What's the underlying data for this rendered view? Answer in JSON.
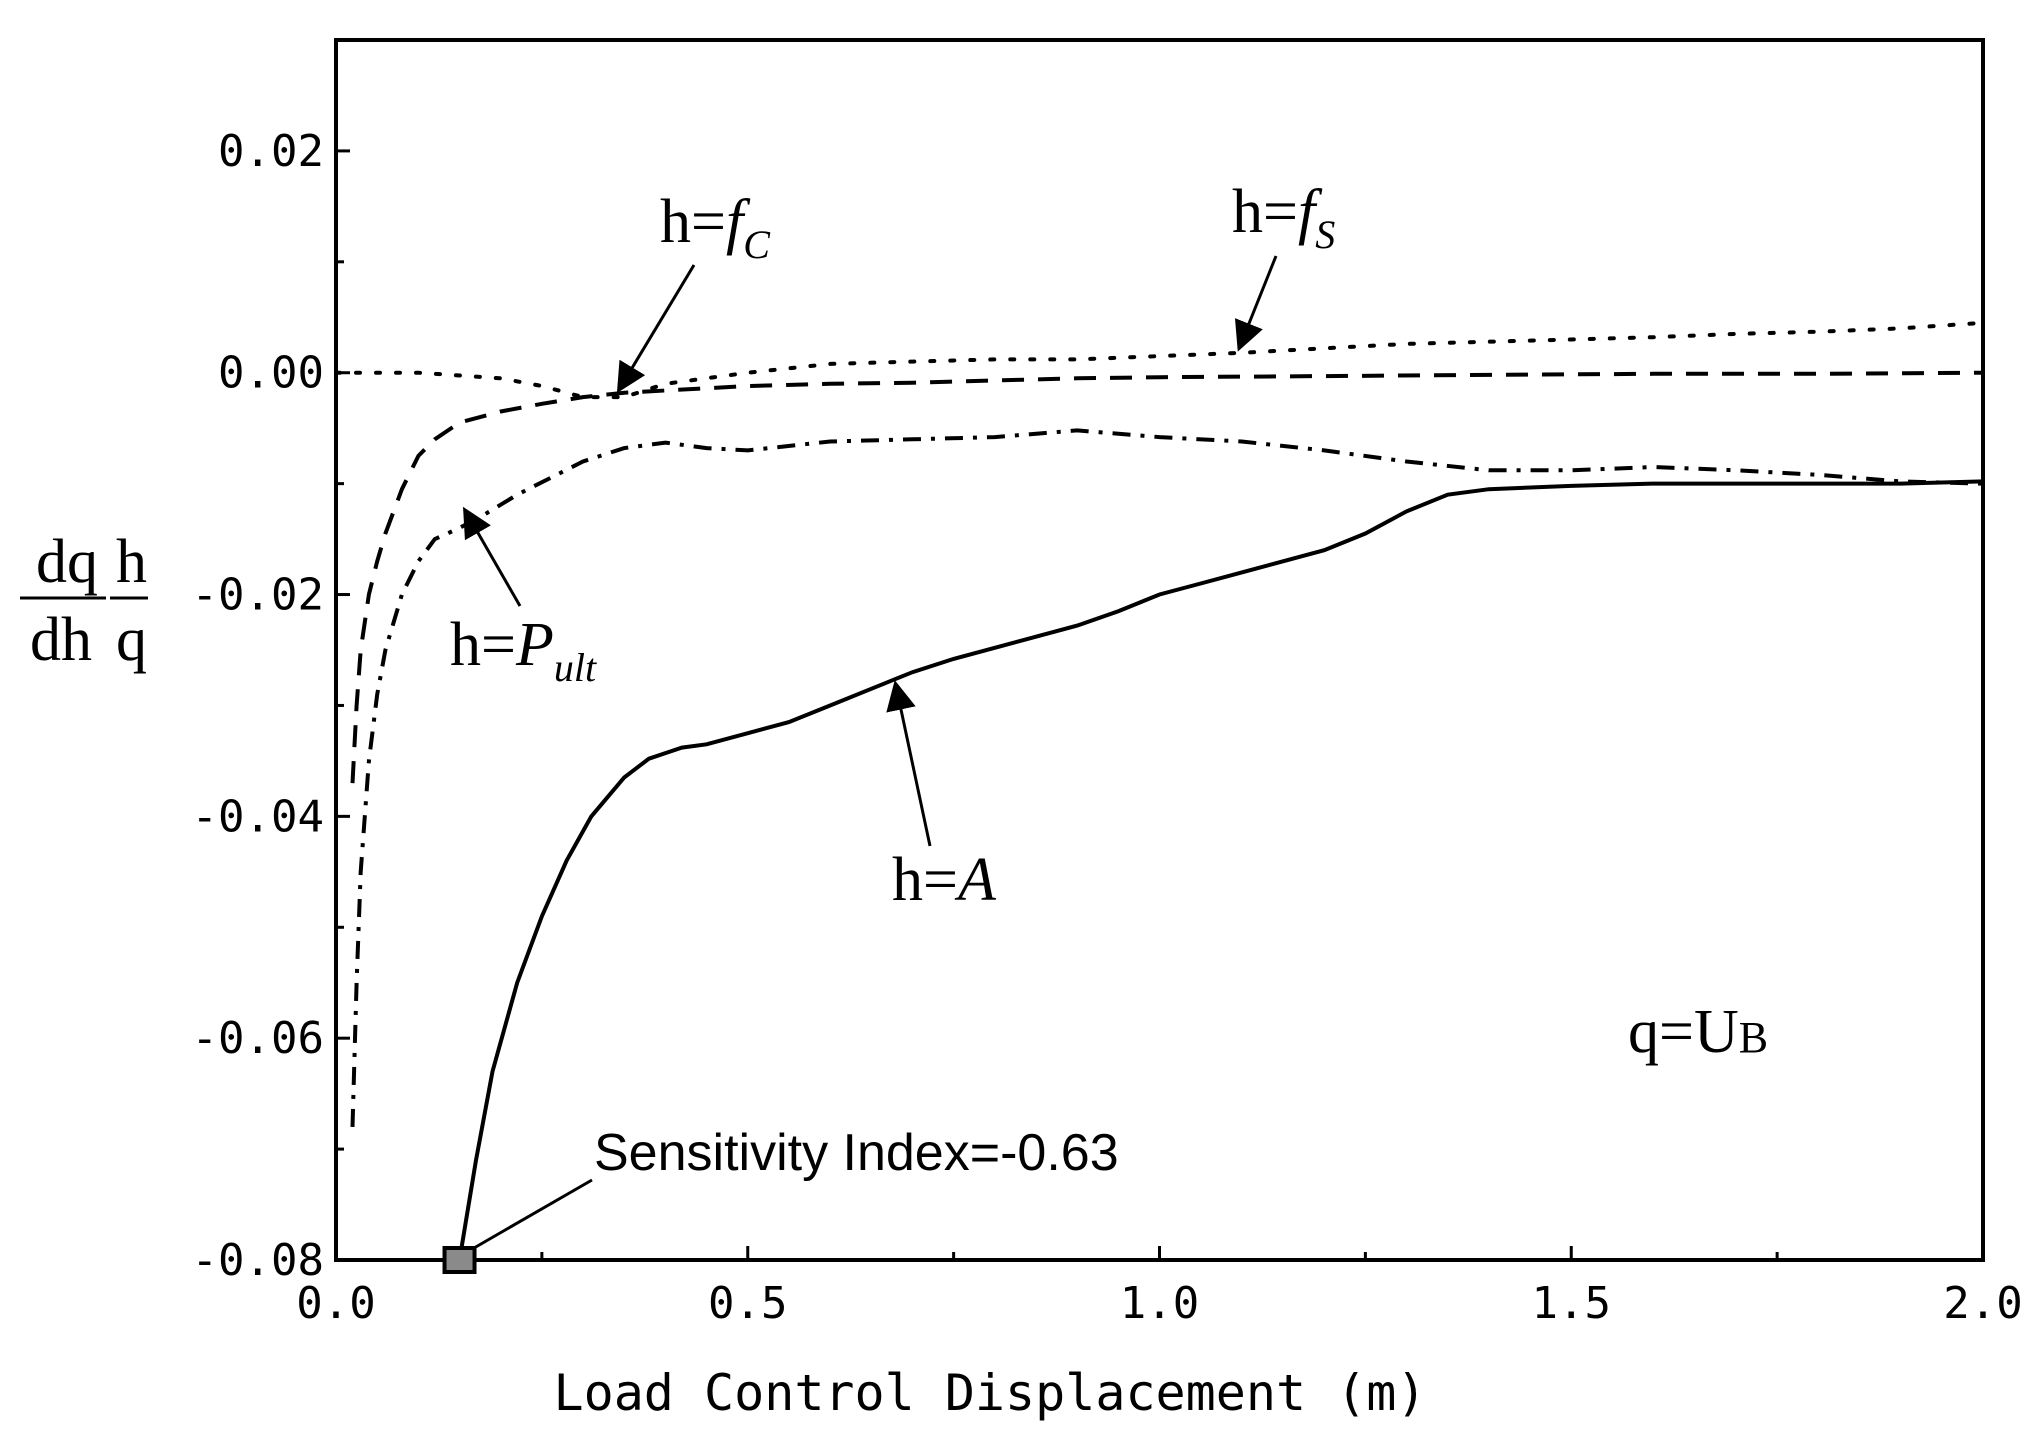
{
  "chart_data": {
    "type": "line",
    "title": "",
    "xlabel": "Load Control Displacement (m)",
    "ylabel": {
      "frac1_num": "dq",
      "frac1_den": "dh",
      "frac2_num": "h",
      "frac2_den": "q"
    },
    "xlim": [
      0,
      2.0
    ],
    "ylim": [
      -0.08,
      0.03
    ],
    "x_ticks": [
      {
        "v": 0.0,
        "label": "0.0"
      },
      {
        "v": 0.5,
        "label": "0.5"
      },
      {
        "v": 1.0,
        "label": "1.0"
      },
      {
        "v": 1.5,
        "label": "1.5"
      },
      {
        "v": 2.0,
        "label": "2.0"
      }
    ],
    "y_ticks": [
      {
        "v": 0.02,
        "label": "0.02"
      },
      {
        "v": 0.0,
        "label": "0.00"
      },
      {
        "v": -0.02,
        "label": "-0.02"
      },
      {
        "v": -0.04,
        "label": "-0.04"
      },
      {
        "v": -0.06,
        "label": "-0.06"
      },
      {
        "v": -0.08,
        "label": "-0.08"
      }
    ],
    "series": [
      {
        "name": "h=A",
        "style": "solid",
        "x": [
          0.15,
          0.17,
          0.19,
          0.22,
          0.25,
          0.28,
          0.31,
          0.35,
          0.38,
          0.4,
          0.42,
          0.45,
          0.5,
          0.55,
          0.6,
          0.65,
          0.7,
          0.75,
          0.8,
          0.85,
          0.9,
          0.95,
          1.0,
          1.05,
          1.1,
          1.15,
          1.2,
          1.25,
          1.3,
          1.35,
          1.4,
          1.5,
          1.6,
          1.7,
          1.8,
          1.9,
          2.0
        ],
        "y": [
          -0.08,
          -0.071,
          -0.063,
          -0.055,
          -0.049,
          -0.044,
          -0.04,
          -0.0365,
          -0.0348,
          -0.0343,
          -0.0338,
          -0.0335,
          -0.0325,
          -0.0315,
          -0.03,
          -0.0285,
          -0.027,
          -0.0258,
          -0.0248,
          -0.0238,
          -0.0228,
          -0.0215,
          -0.02,
          -0.019,
          -0.018,
          -0.017,
          -0.016,
          -0.0145,
          -0.0125,
          -0.011,
          -0.0105,
          -0.0102,
          -0.01,
          -0.01,
          -0.01,
          -0.01,
          -0.0098
        ]
      },
      {
        "name": "h=Pult",
        "style": "dashdot",
        "x": [
          0.02,
          0.025,
          0.03,
          0.04,
          0.05,
          0.06,
          0.08,
          0.1,
          0.12,
          0.15,
          0.18,
          0.22,
          0.26,
          0.3,
          0.35,
          0.4,
          0.45,
          0.5,
          0.6,
          0.7,
          0.8,
          0.9,
          1.0,
          1.1,
          1.2,
          1.3,
          1.4,
          1.5,
          1.6,
          1.7,
          1.8,
          1.9,
          2.0
        ],
        "y": [
          -0.068,
          -0.055,
          -0.045,
          -0.035,
          -0.029,
          -0.025,
          -0.02,
          -0.017,
          -0.015,
          -0.014,
          -0.0128,
          -0.011,
          -0.0095,
          -0.008,
          -0.0068,
          -0.0063,
          -0.0068,
          -0.007,
          -0.0062,
          -0.006,
          -0.0058,
          -0.0052,
          -0.0058,
          -0.0062,
          -0.007,
          -0.008,
          -0.0088,
          -0.0088,
          -0.0085,
          -0.0088,
          -0.0092,
          -0.0098,
          -0.01
        ]
      },
      {
        "name": "h=fC",
        "style": "dashed",
        "x": [
          0.02,
          0.025,
          0.03,
          0.04,
          0.05,
          0.06,
          0.08,
          0.1,
          0.12,
          0.15,
          0.2,
          0.25,
          0.3,
          0.35,
          0.4,
          0.5,
          0.6,
          0.7,
          0.8,
          0.9,
          1.0,
          1.2,
          1.4,
          1.6,
          1.8,
          2.0
        ],
        "y": [
          -0.037,
          -0.03,
          -0.025,
          -0.02,
          -0.017,
          -0.0145,
          -0.0105,
          -0.0075,
          -0.006,
          -0.0045,
          -0.0035,
          -0.0028,
          -0.0022,
          -0.0018,
          -0.0016,
          -0.0012,
          -0.001,
          -0.0009,
          -0.0007,
          -0.0005,
          -0.0004,
          -0.0003,
          -0.0002,
          -0.0001,
          -0.0001,
          0.0
        ]
      },
      {
        "name": "h=fS",
        "style": "dotted",
        "x": [
          0.0,
          0.1,
          0.2,
          0.25,
          0.3,
          0.35,
          0.4,
          0.5,
          0.6,
          0.7,
          0.8,
          0.9,
          1.0,
          1.1,
          1.2,
          1.3,
          1.4,
          1.5,
          1.6,
          1.7,
          1.8,
          1.9,
          2.0
        ],
        "y": [
          0.0,
          0.0,
          -0.0005,
          -0.0012,
          -0.0022,
          -0.0022,
          -0.001,
          0.0,
          0.0008,
          0.001,
          0.0012,
          0.0012,
          0.0015,
          0.0018,
          0.0022,
          0.0026,
          0.0028,
          0.003,
          0.0032,
          0.0035,
          0.0037,
          0.004,
          0.0045
        ]
      }
    ],
    "annotations": {
      "fc_label": {
        "h": "h=",
        "f": "f",
        "sub": "C"
      },
      "fs_label": {
        "h": "h=",
        "f": "f",
        "sub": "S"
      },
      "pult_label": {
        "h": "h=",
        "f": "P",
        "sub": "ult"
      },
      "a_label": {
        "h": "h=",
        "f": "A"
      },
      "q_label": {
        "q": "q=U",
        "sub": "B"
      },
      "sensitivity": "Sensitivity Index=-0.63"
    },
    "marker": {
      "x": 0.15,
      "y": -0.08,
      "color": "#8a8a8a"
    }
  }
}
